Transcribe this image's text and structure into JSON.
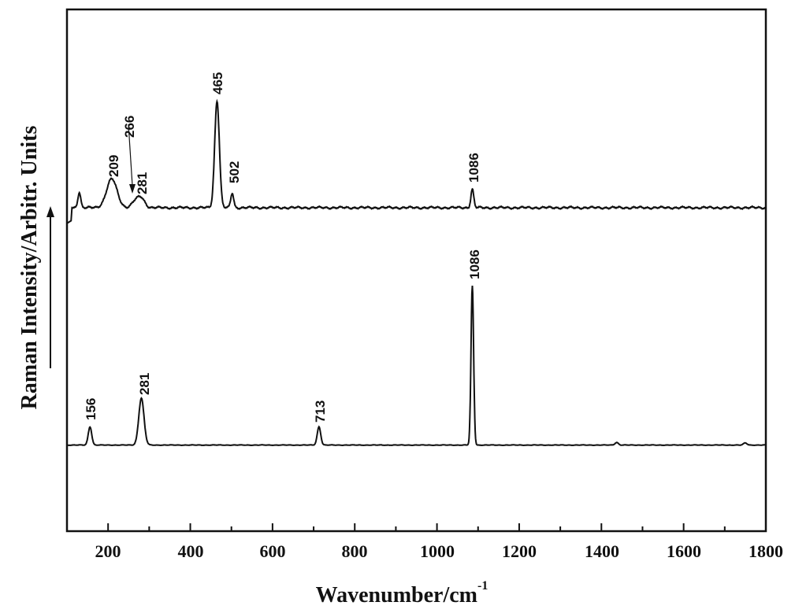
{
  "chart_data": {
    "type": "line",
    "title": "",
    "xlabel": "Wavenumber/cm",
    "xlabel_superscript": "-1",
    "ylabel": "Raman Intensity/Arbitr. Units",
    "xlim": [
      100,
      1800
    ],
    "ylim": [
      0,
      1
    ],
    "grid": false,
    "legend": "none",
    "x_ticks": [
      200,
      400,
      600,
      800,
      1000,
      1200,
      1400,
      1600,
      1800
    ],
    "x_tick_labels": [
      "200",
      "400",
      "600",
      "800",
      "1000",
      "1200",
      "1400",
      "1600",
      "1800"
    ],
    "y_ticks_shown": false,
    "intensity_arrow": "up",
    "series": [
      {
        "name": "upper spectrum",
        "baseline_offset": 0.62,
        "peaks": [
          {
            "x": 130,
            "height": 0.03
          },
          {
            "x": 209,
            "height": 0.055,
            "label": "209"
          },
          {
            "x": 266,
            "height": 0.012,
            "label": "266",
            "annotation": "arrow"
          },
          {
            "x": 281,
            "height": 0.018,
            "label": "281"
          },
          {
            "x": 465,
            "height": 0.205,
            "label": "465"
          },
          {
            "x": 502,
            "height": 0.028,
            "label": "502"
          },
          {
            "x": 1086,
            "height": 0.035,
            "label": "1086"
          }
        ]
      },
      {
        "name": "lower spectrum",
        "baseline_offset": 0.165,
        "peaks": [
          {
            "x": 156,
            "height": 0.035,
            "label": "156"
          },
          {
            "x": 281,
            "height": 0.09,
            "label": "281"
          },
          {
            "x": 713,
            "height": 0.035,
            "label": "713"
          },
          {
            "x": 1086,
            "height": 0.305,
            "label": "1086"
          },
          {
            "x": 1437,
            "height": 0.005
          },
          {
            "x": 1750,
            "height": 0.004
          }
        ]
      }
    ]
  },
  "labels": {
    "x_axis_title": "Wavenumber/cm",
    "x_axis_title_sup": "-1",
    "y_axis_title": "Raman Intensity/Arbitr. Units",
    "x_ticks": [
      "200",
      "400",
      "600",
      "800",
      "1000",
      "1200",
      "1400",
      "1600",
      "1800"
    ],
    "upper_peaks": [
      "209",
      "266",
      "281",
      "465",
      "502",
      "1086"
    ],
    "lower_peaks": [
      "156",
      "281",
      "713",
      "1086"
    ]
  },
  "colors": {
    "line": "#111111",
    "background": "#ffffff"
  }
}
